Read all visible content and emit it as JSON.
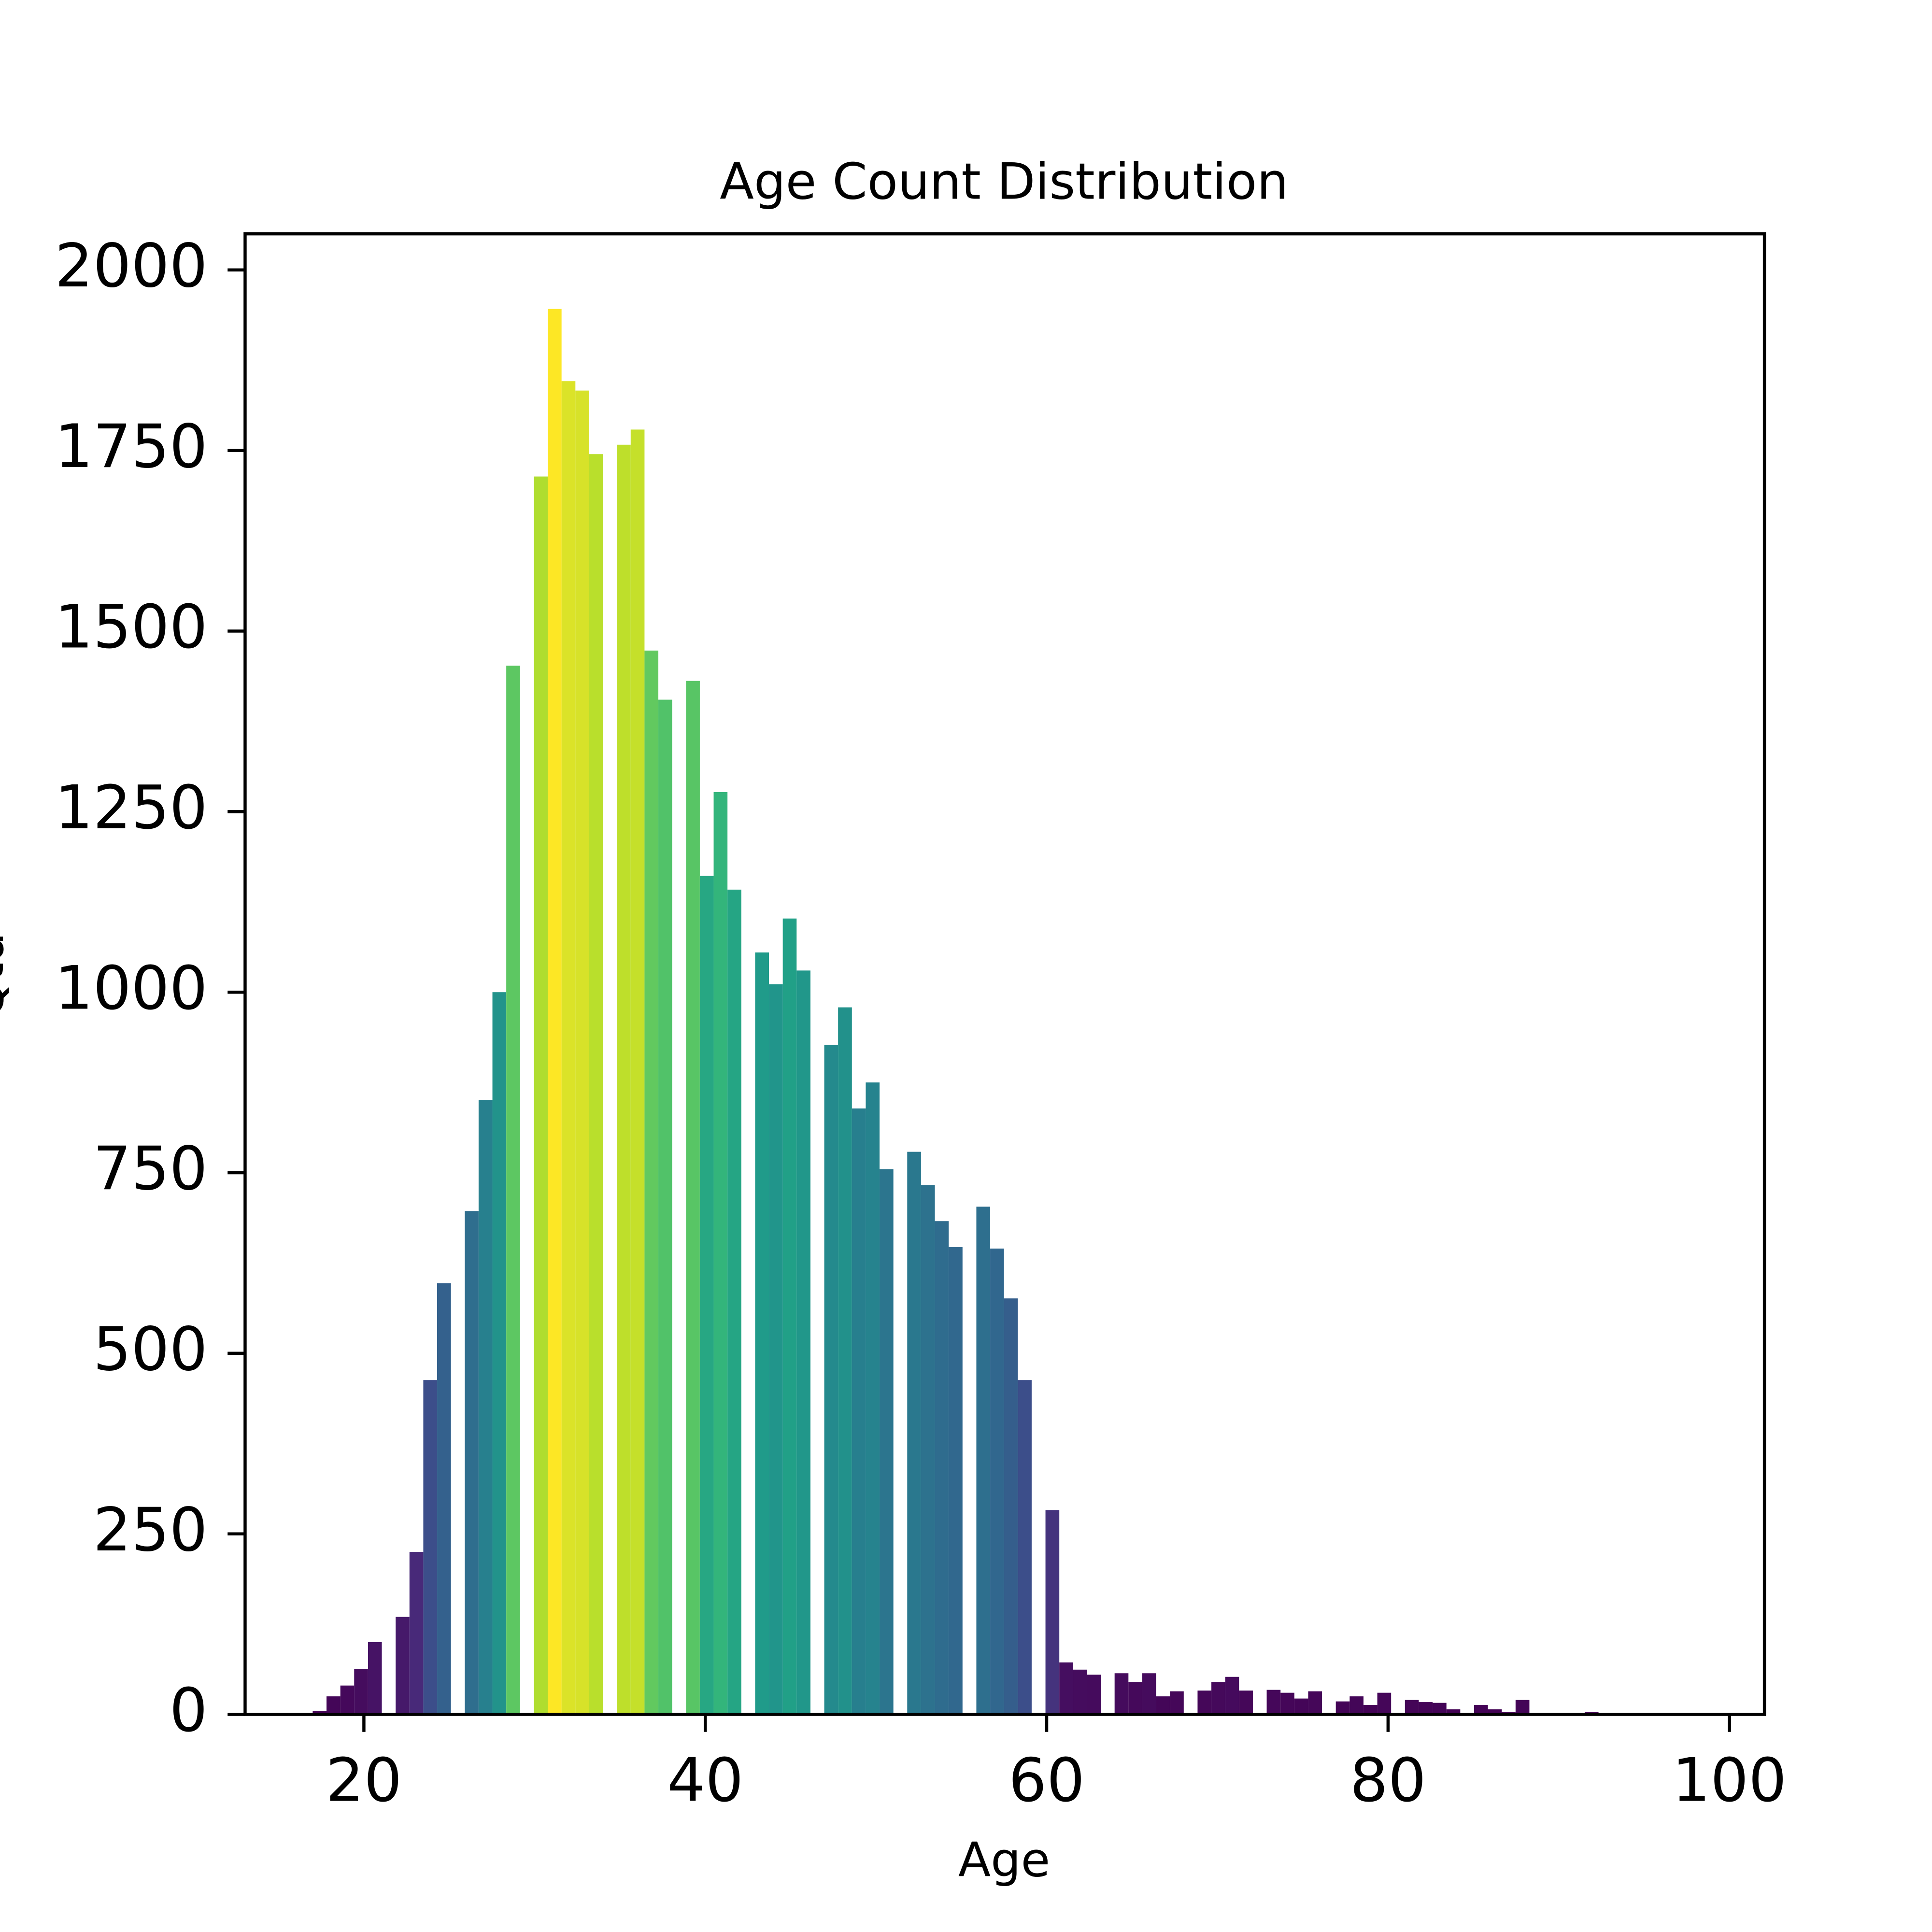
{
  "chart_data": {
    "type": "histogram",
    "title": "Age Count Distribution",
    "xlabel": "Age",
    "ylabel": "Qtd",
    "colormap": "viridis",
    "bins": [
      17,
      17.81,
      18.62,
      19.43,
      20.24,
      21.05,
      21.86,
      22.67,
      23.48,
      24.29,
      25.1,
      25.91,
      26.72,
      27.53,
      28.34,
      29.15,
      29.96,
      30.77,
      31.58,
      32.39,
      33.2,
      34.01,
      34.82,
      35.63,
      36.44,
      37.25,
      38.06,
      38.87,
      39.68,
      40.49,
      41.3,
      42.11,
      42.92,
      43.73,
      44.54,
      45.35,
      46.16,
      46.97,
      47.78,
      48.59,
      49.4,
      50.21,
      51.02,
      51.83,
      52.64,
      53.45,
      54.26,
      55.07,
      55.88,
      56.69,
      57.5,
      58.31,
      59.12,
      59.93,
      60.74,
      61.55,
      62.36,
      63.17,
      63.98,
      64.79,
      65.6,
      66.41,
      67.22,
      68.03,
      68.84,
      69.65,
      70.46,
      71.27,
      72.08,
      72.89,
      73.7,
      74.51,
      75.32,
      76.13,
      76.94,
      77.75,
      78.56,
      79.37,
      80.18,
      80.99,
      81.8,
      82.61,
      83.42,
      84.23,
      85.04,
      85.85,
      86.66,
      87.47,
      88.28,
      89.09,
      89.9,
      90.71,
      91.52,
      92.33,
      93.14,
      93.95,
      94.76,
      95.57,
      96.38,
      97.19,
      98.0
    ],
    "values": [
      5,
      25,
      40,
      63,
      100,
      0,
      135,
      225,
      463,
      597,
      0,
      697,
      851,
      1000,
      1452,
      0,
      1714,
      1946,
      1846,
      1833,
      1745,
      0,
      1758,
      1779,
      1473,
      1405,
      0,
      1431,
      1161,
      1277,
      1142,
      0,
      1055,
      1011,
      1102,
      1030,
      0,
      927,
      979,
      839,
      875,
      755,
      0,
      779,
      733,
      683,
      647,
      0,
      703,
      645,
      576,
      463,
      0,
      283,
      72,
      62,
      55,
      0,
      57,
      45,
      57,
      25,
      32,
      0,
      33,
      45,
      52,
      33,
      0,
      34,
      30,
      22,
      32,
      0,
      18,
      25,
      13,
      30,
      0,
      20,
      17,
      16,
      7,
      0,
      13,
      7,
      3,
      20,
      2,
      0,
      1,
      1,
      3,
      1,
      0,
      0,
      0,
      0,
      0,
      1
    ],
    "xlim": [
      13.04,
      102.05
    ],
    "ylim": [
      0,
      2050
    ],
    "xticks": [
      20,
      40,
      60,
      80,
      100
    ],
    "yticks": [
      0,
      250,
      500,
      750,
      1000,
      1250,
      1500,
      1750,
      2000
    ]
  }
}
